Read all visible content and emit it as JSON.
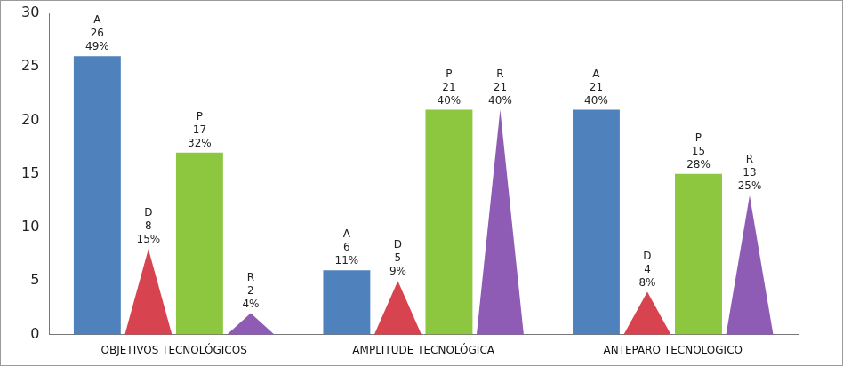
{
  "chart_data": {
    "type": "bar",
    "categories": [
      "OBJETIVOS TECNOLÓGICOS",
      "AMPLITUDE TECNOLÓGICA",
      "ANTEPARO TECNOLOGICO"
    ],
    "series": [
      {
        "name": "A",
        "color": "#4f81bd",
        "values": [
          26,
          6,
          21
        ],
        "percent_labels": [
          "49%",
          "11%",
          "40%"
        ]
      },
      {
        "name": "D",
        "color": "#d7434f",
        "marker": "triangle",
        "values": [
          8,
          5,
          4
        ],
        "percent_labels": [
          "15%",
          "9%",
          "8%"
        ]
      },
      {
        "name": "P",
        "color": "#8dc63f",
        "values": [
          17,
          21,
          15
        ],
        "percent_labels": [
          "32%",
          "40%",
          "28%"
        ]
      },
      {
        "name": "R",
        "color": "#8e5bb5",
        "marker": "triangle",
        "values": [
          2,
          21,
          13
        ],
        "percent_labels": [
          "4%",
          "40%",
          "25%"
        ]
      }
    ],
    "ylim": [
      0,
      30
    ],
    "yticks": [
      0,
      5,
      10,
      15,
      20,
      25,
      30
    ],
    "grid": false,
    "data_labels": true
  }
}
